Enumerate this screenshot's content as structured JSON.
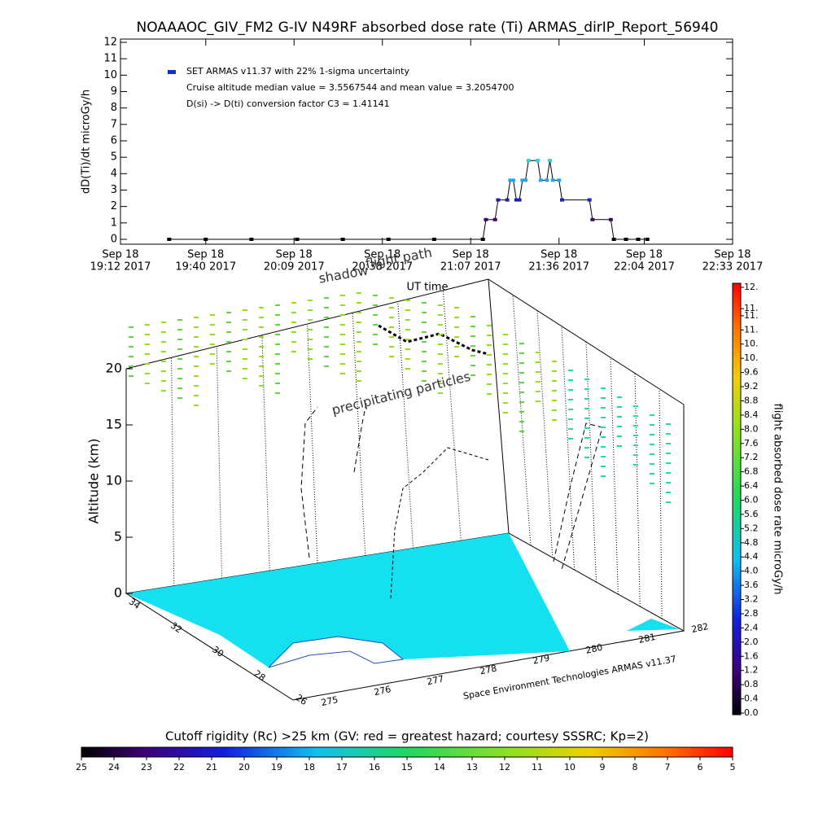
{
  "chart_data": [
    {
      "type": "line",
      "title": "NOAAAOC_GIV_FM2 G-IV   N49RF  absorbed dose rate (Ti) ARMAS_dirIP_Report_56940",
      "ylabel": "dD(Ti)/dt microGy/h",
      "xlabel": "UT time",
      "annotations": [
        "Cruise altitude median value = 3.5567544 and mean value = 3.2054700",
        "D(si) -> D(ti) conversion factor C3 = 1.41141"
      ],
      "xlim": [
        "2017-09-18 19:12",
        "2017-09-18 22:33"
      ],
      "xticks": [
        {
          "value": "2017-09-18 19:12",
          "label": [
            "Sep 18",
            "19:12 2017"
          ]
        },
        {
          "value": "2017-09-18 19:40",
          "label": [
            "Sep 18",
            "19:40 2017"
          ]
        },
        {
          "value": "2017-09-18 20:09",
          "label": [
            "Sep 18",
            "20:09 2017"
          ]
        },
        {
          "value": "2017-09-18 20:38",
          "label": [
            "Sep 18",
            "20:38 2017"
          ]
        },
        {
          "value": "2017-09-18 21:07",
          "label": [
            "Sep 18",
            "21:07 2017"
          ]
        },
        {
          "value": "2017-09-18 21:36",
          "label": [
            "Sep 18",
            "21:36 2017"
          ]
        },
        {
          "value": "2017-09-18 22:04",
          "label": [
            "Sep 18",
            "22:04 2017"
          ]
        },
        {
          "value": "2017-09-18 22:33",
          "label": [
            "Sep 18",
            "22:33 2017"
          ]
        }
      ],
      "ylim": [
        0,
        12
      ],
      "yticks": [
        0,
        1,
        2,
        3,
        4,
        5,
        6,
        7,
        8,
        9,
        10,
        11,
        12
      ],
      "x": [
        "2017-09-18 19:28",
        "2017-09-18 19:40",
        "2017-09-18 19:55",
        "2017-09-18 20:10",
        "2017-09-18 20:25",
        "2017-09-18 20:40",
        "2017-09-18 20:55",
        "2017-09-18 21:11",
        "2017-09-18 21:12",
        "2017-09-18 21:15",
        "2017-09-18 21:16",
        "2017-09-18 21:19",
        "2017-09-18 21:20",
        "2017-09-18 21:21",
        "2017-09-18 21:22",
        "2017-09-18 21:23",
        "2017-09-18 21:24",
        "2017-09-18 21:25",
        "2017-09-18 21:26",
        "2017-09-18 21:29",
        "2017-09-18 21:30",
        "2017-09-18 21:32",
        "2017-09-18 21:33",
        "2017-09-18 21:34",
        "2017-09-18 21:36",
        "2017-09-18 21:37",
        "2017-09-18 21:46",
        "2017-09-18 21:47",
        "2017-09-18 21:53",
        "2017-09-18 21:54",
        "2017-09-18 21:58",
        "2017-09-18 22:02",
        "2017-09-18 22:05"
      ],
      "series": [
        {
          "name": "SET ARMAS v11.37 with 22% 1-sigma uncertainty",
          "color": "#1030d0",
          "values": [
            0,
            0,
            0,
            0,
            0,
            0,
            0,
            0,
            1.2,
            1.2,
            2.4,
            2.4,
            3.6,
            3.6,
            2.4,
            2.4,
            3.6,
            3.6,
            4.8,
            4.8,
            3.6,
            3.6,
            4.8,
            3.6,
            3.6,
            2.4,
            2.4,
            1.2,
            1.2,
            0,
            0,
            0,
            0
          ],
          "colors": [
            "#000000",
            "#000000",
            "#000000",
            "#000000",
            "#000000",
            "#000000",
            "#000000",
            "#000000",
            "#3a0a60",
            "#3a0a60",
            "#2020b0",
            "#2020b0",
            "#20a8e8",
            "#20a8e8",
            "#2020b0",
            "#2020b0",
            "#20a8e8",
            "#20a8e8",
            "#30d0e0",
            "#30d0e0",
            "#20a8e8",
            "#20a8e8",
            "#30d0e0",
            "#20a8e8",
            "#20a8e8",
            "#2020b0",
            "#2020b0",
            "#3a0a60",
            "#3a0a60",
            "#000000",
            "#000000",
            "#000000",
            "#000000"
          ]
        }
      ]
    },
    {
      "type": "surface-3d",
      "zlabel": "Altitude (km)",
      "zticks": [
        0,
        5,
        10,
        15,
        20
      ],
      "xticks": [
        275,
        276,
        277,
        278,
        279,
        280,
        281,
        282
      ],
      "yticks": [
        34,
        32,
        30,
        28,
        26
      ],
      "annotations": [
        "precipitating particles",
        "flight path",
        "shadow"
      ],
      "credit": "Space Environment Technologies ARMAS v11.37"
    },
    {
      "type": "colorbar",
      "orientation": "vertical",
      "title": "flight absorbed dose rate microGy/h",
      "ticks": [
        {
          "value": 0,
          "label": "0.0"
        },
        {
          "value": 0.4,
          "label": "0.4"
        },
        {
          "value": 0.8,
          "label": "0.8"
        },
        {
          "value": 1.2,
          "label": "1.2"
        },
        {
          "value": 1.6,
          "label": "1.6"
        },
        {
          "value": 2,
          "label": "2.0"
        },
        {
          "value": 2.4,
          "label": "2.4"
        },
        {
          "value": 2.8,
          "label": "2.8"
        },
        {
          "value": 3.2,
          "label": "3.2"
        },
        {
          "value": 3.6,
          "label": "3.6"
        },
        {
          "value": 4,
          "label": "4.0"
        },
        {
          "value": 4.4,
          "label": "4.4"
        },
        {
          "value": 4.8,
          "label": "4.8"
        },
        {
          "value": 5.2,
          "label": "5.2"
        },
        {
          "value": 5.6,
          "label": "5.6"
        },
        {
          "value": 6,
          "label": "6.0"
        },
        {
          "value": 6.4,
          "label": "6.4"
        },
        {
          "value": 6.8,
          "label": "6.8"
        },
        {
          "value": 7.2,
          "label": "7.2"
        },
        {
          "value": 7.6,
          "label": "7.6"
        },
        {
          "value": 8,
          "label": "8.0"
        },
        {
          "value": 8.4,
          "label": "8.4"
        },
        {
          "value": 8.8,
          "label": "8.8"
        },
        {
          "value": 9.2,
          "label": "9.2"
        },
        {
          "value": 9.6,
          "label": "9.6"
        },
        {
          "value": 10,
          "label": "10."
        },
        {
          "value": 10.4,
          "label": "10."
        },
        {
          "value": 10.8,
          "label": "11."
        },
        {
          "value": 11.2,
          "label": "11."
        },
        {
          "value": 11.4,
          "label": "11."
        },
        {
          "value": 12,
          "label": "12."
        }
      ],
      "lim": [
        0,
        12
      ]
    },
    {
      "type": "colorbar",
      "orientation": "horizontal",
      "title": "Cutoff rigidity (Rc) >25 km (GV: red = greatest hazard; courtesy SSSRC; Kp=2)",
      "ticks": [
        25,
        24,
        23,
        22,
        21,
        20,
        19,
        18,
        17,
        16,
        15,
        14,
        13,
        12,
        11,
        10,
        9,
        8,
        7,
        6,
        5
      ],
      "lim": [
        25,
        5
      ]
    }
  ]
}
